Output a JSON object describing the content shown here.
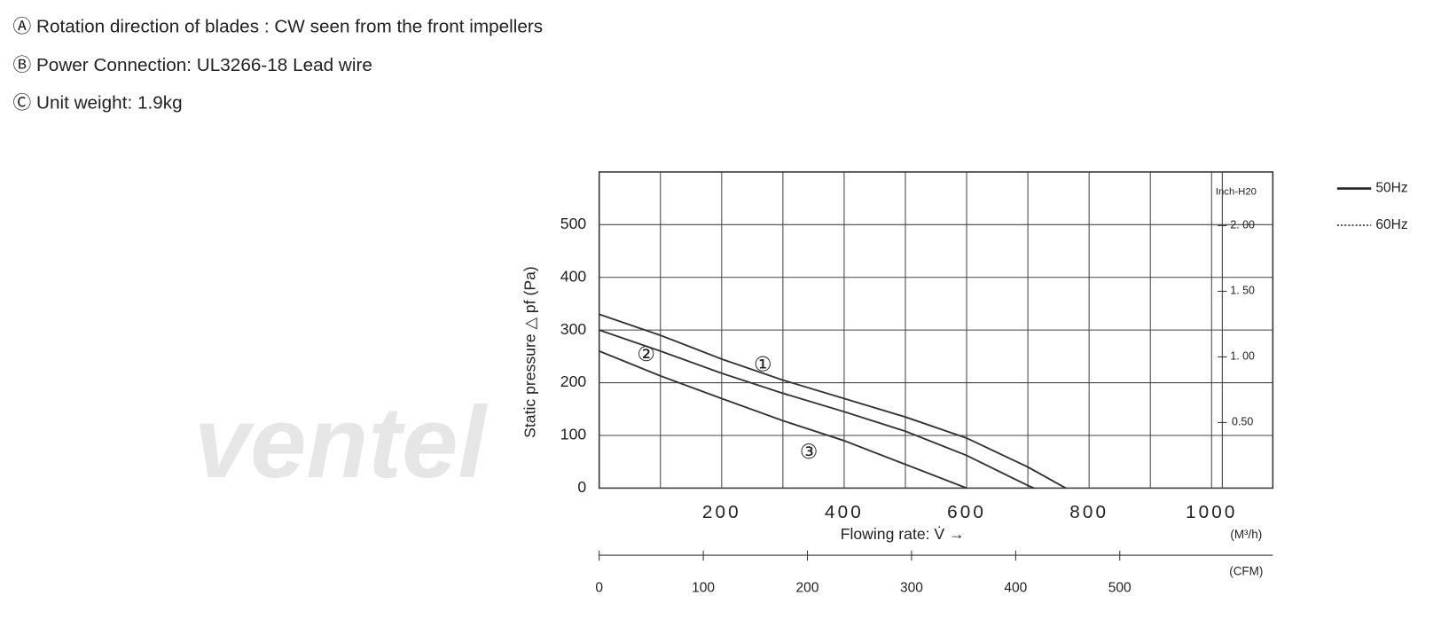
{
  "notes": [
    "Ⓐ Rotation direction of blades : CW seen from the front impellers",
    "Ⓑ Power Connection:  UL3266-18 Lead wire",
    "Ⓒ Unit weight:  1.9kg"
  ],
  "watermark": "ventel",
  "chart_data": {
    "type": "line",
    "ylabel": "Static pressure △ pf (Pa)",
    "xlabel": "Flowing rate: V̇ →",
    "x_unit": "(M³/h)",
    "x2_unit": "(CFM)",
    "y2_unit": "Inch-H20",
    "xlim": [
      0,
      1100
    ],
    "xticks": [
      200,
      400,
      600,
      800,
      1000
    ],
    "minor_xticks": [
      100,
      300,
      500,
      700,
      900
    ],
    "ylim": [
      0,
      600
    ],
    "yticks": [
      0,
      100,
      200,
      300,
      400,
      500
    ],
    "y2lim": [
      0,
      2.409
    ],
    "y2ticks": [
      {
        "value": 2,
        "label": "2. 00"
      },
      {
        "value": 1.5,
        "label": "1. 50"
      },
      {
        "value": 1,
        "label": "1. 00"
      },
      {
        "value": 0.5,
        "label": "0.50"
      }
    ],
    "x2lim": [
      0,
      647
    ],
    "x2ticks": [
      0,
      100,
      200,
      300,
      400,
      500
    ],
    "grid": true,
    "legend": [
      {
        "name": "50Hz",
        "style": "solid"
      },
      {
        "name": "60Hz",
        "style": "dotted"
      }
    ],
    "series": [
      {
        "name": "①",
        "color": "#333",
        "x": [
          0,
          100,
          200,
          300,
          400,
          500,
          600,
          700,
          762
        ],
        "values": [
          330,
          290,
          245,
          205,
          170,
          135,
          95,
          40,
          0
        ]
      },
      {
        "name": "②",
        "color": "#333",
        "x": [
          0,
          100,
          200,
          300,
          400,
          500,
          600,
          700,
          710
        ],
        "values": [
          300,
          260,
          218,
          180,
          145,
          108,
          62,
          5,
          0
        ]
      },
      {
        "name": "③",
        "color": "#333",
        "x": [
          0,
          100,
          200,
          300,
          400,
          500,
          600
        ],
        "values": [
          260,
          213,
          170,
          128,
          90,
          45,
          0
        ]
      }
    ]
  }
}
